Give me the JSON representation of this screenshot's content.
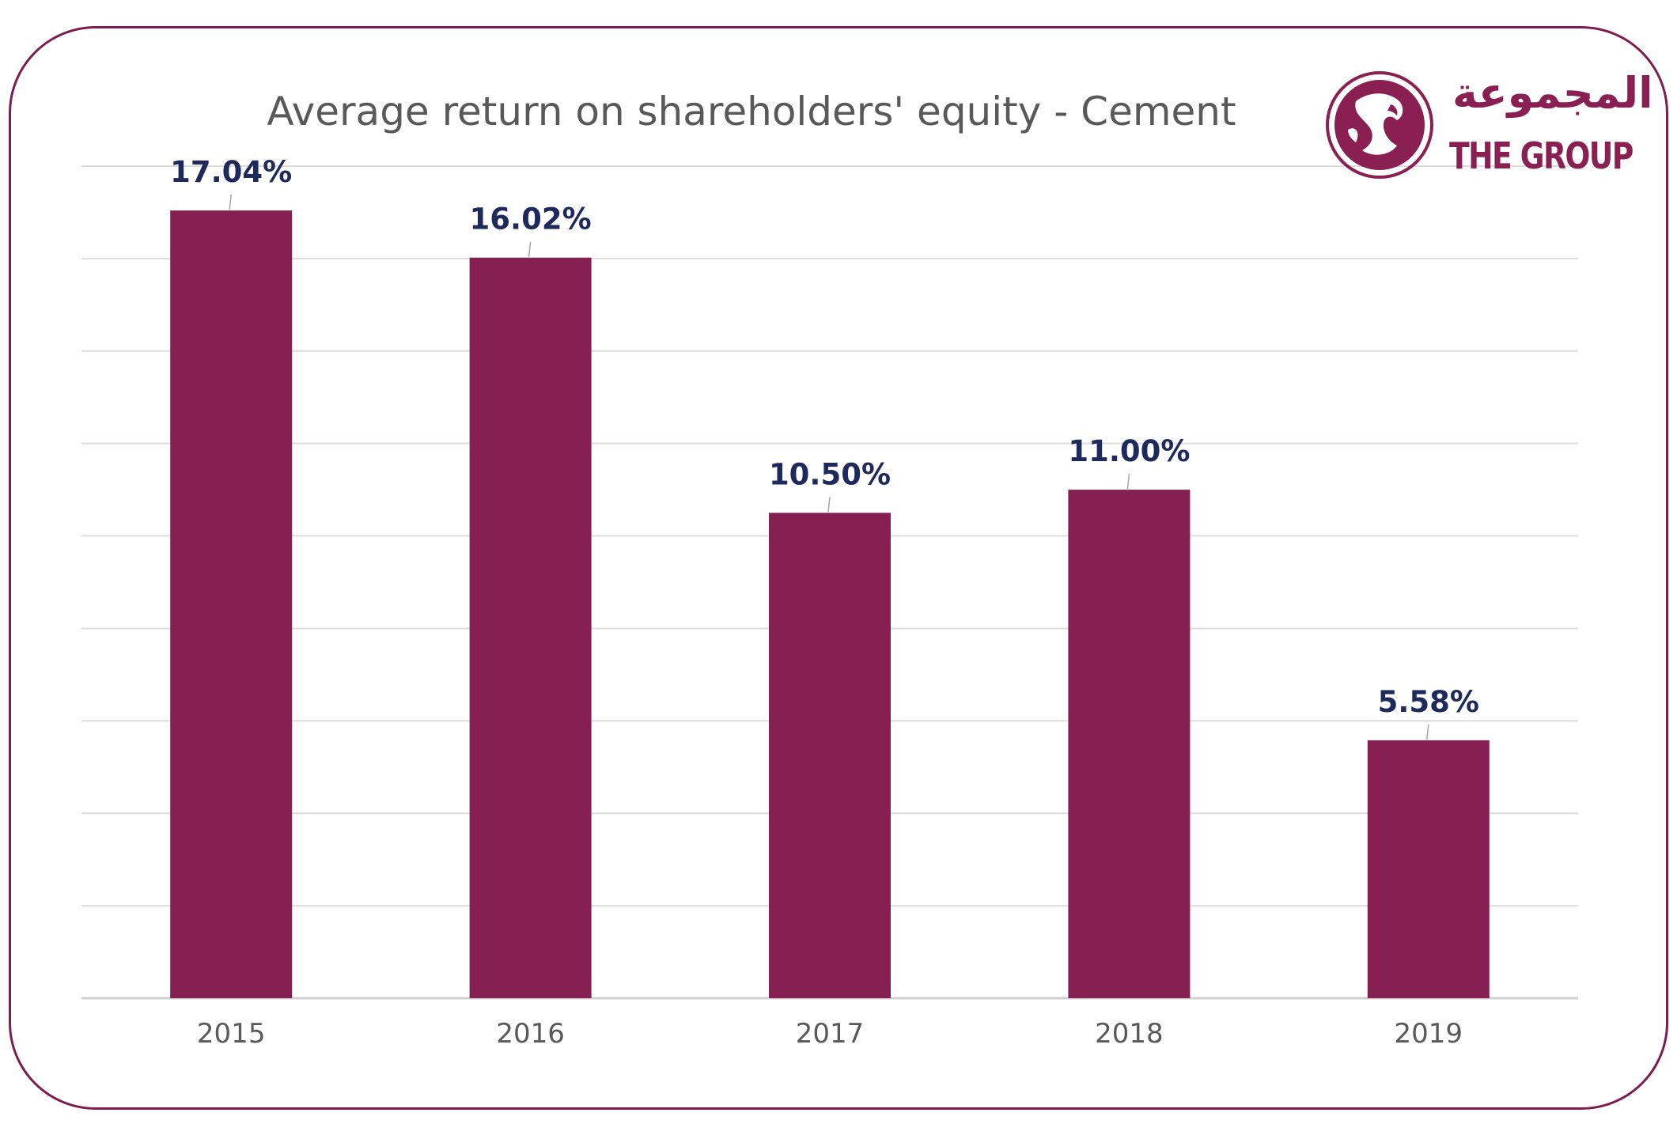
{
  "chart_data": {
    "type": "bar",
    "title": "Average return on shareholders' equity - Cement",
    "categories": [
      "2015",
      "2016",
      "2017",
      "2018",
      "2019"
    ],
    "values": [
      17.04,
      16.02,
      10.5,
      11.0,
      5.58
    ],
    "data_labels": [
      "17.04%",
      "16.02%",
      "10.50%",
      "11.00%",
      "5.58%"
    ],
    "ylim": [
      0,
      18
    ],
    "gridlines": 9,
    "grid": true,
    "bar_color": "#862052",
    "label_color": "#1f2a5c"
  },
  "logo": {
    "arabic_text": "المجموعة",
    "english_text": "THE GROUP",
    "color": "#8a2051",
    "emblem": "falcon-globe-emblem"
  }
}
